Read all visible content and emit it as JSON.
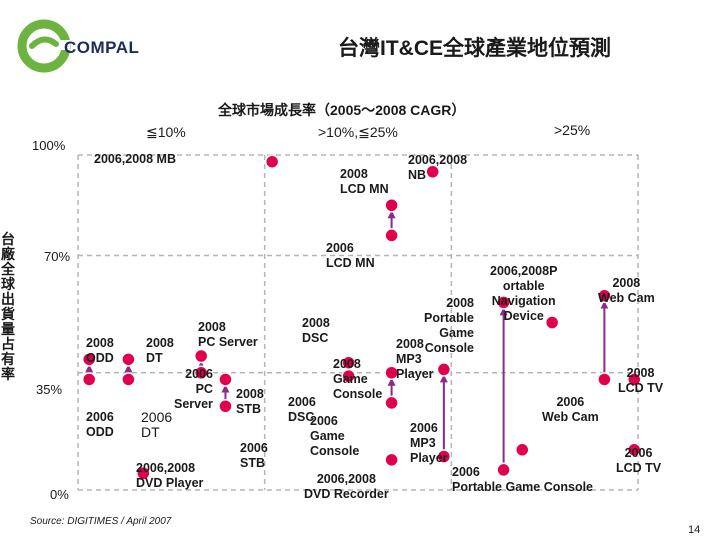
{
  "header": {
    "logo_text": "COMPAL",
    "title": "台灣IT&CE全球產業地位預測",
    "colors": {
      "logo_green": "#6cb33f",
      "logo_navy": "#1f2b5a",
      "marker": "#e0004d",
      "arrow": "#8a2a8a",
      "grid": "#b5b5b5"
    }
  },
  "chart_data": {
    "type": "scatter",
    "title": "全球市場成長率（2005～2008 CAGR）",
    "columns": [
      "≦10%",
      ">10%,≦25%",
      ">25%"
    ],
    "ylabel": "台廠全球出貨量占有率",
    "yticks": [
      "100%",
      "70%",
      "35%",
      "0%"
    ],
    "ylim": [
      0,
      100
    ],
    "xlim": [
      0,
      3
    ],
    "points": [
      {
        "id": "mb",
        "x": 1.04,
        "y": 98
      },
      {
        "id": "nb",
        "x": 1.9,
        "y": 95
      },
      {
        "id": "lcdmn2008",
        "x": 1.68,
        "y": 85
      },
      {
        "id": "lcdmn2006",
        "x": 1.68,
        "y": 76
      },
      {
        "id": "odd2008",
        "x": 0.06,
        "y": 39
      },
      {
        "id": "odd2006",
        "x": 0.06,
        "y": 33
      },
      {
        "id": "dt2008",
        "x": 0.27,
        "y": 39
      },
      {
        "id": "dt2006",
        "x": 0.27,
        "y": 33
      },
      {
        "id": "pcserver2008",
        "x": 0.66,
        "y": 40
      },
      {
        "id": "pcserver2006",
        "x": 0.66,
        "y": 35
      },
      {
        "id": "stb2008",
        "x": 0.79,
        "y": 33
      },
      {
        "id": "stb2006",
        "x": 0.79,
        "y": 25
      },
      {
        "id": "dvdplayer",
        "x": 0.35,
        "y": 5
      },
      {
        "id": "dsc2008",
        "x": 1.45,
        "y": 38
      },
      {
        "id": "dsc2006",
        "x": 1.45,
        "y": 34
      },
      {
        "id": "gc2008",
        "x": 1.68,
        "y": 35
      },
      {
        "id": "gc2006",
        "x": 1.68,
        "y": 26
      },
      {
        "id": "dvdrec",
        "x": 1.68,
        "y": 9
      },
      {
        "id": "mp32008",
        "x": 1.96,
        "y": 36
      },
      {
        "id": "mp32006",
        "x": 1.96,
        "y": 10
      },
      {
        "id": "pgc2008",
        "x": 2.28,
        "y": 56
      },
      {
        "id": "pgc2006",
        "x": 2.28,
        "y": 6
      },
      {
        "id": "navi2008",
        "x": 2.54,
        "y": 50
      },
      {
        "id": "navi2006",
        "x": 2.38,
        "y": 12
      },
      {
        "id": "webcam2008",
        "x": 2.82,
        "y": 58
      },
      {
        "id": "webcam2006",
        "x": 2.82,
        "y": 33
      },
      {
        "id": "lcdtv2008",
        "x": 2.98,
        "y": 33
      },
      {
        "id": "lcdtv2006",
        "x": 2.98,
        "y": 12
      }
    ],
    "arrows": [
      {
        "from": "lcdmn2006",
        "to": "lcdmn2008"
      },
      {
        "from": "odd2006",
        "to": "odd2008"
      },
      {
        "from": "dt2006",
        "to": "dt2008"
      },
      {
        "from": "pcserver2006",
        "to": "pcserver2008"
      },
      {
        "from": "stb2006",
        "to": "stb2008"
      },
      {
        "from": "dsc2006",
        "to": "dsc2008"
      },
      {
        "from": "gc2006",
        "to": "gc2008"
      },
      {
        "from": "mp32006",
        "to": "mp32008"
      },
      {
        "from": "pgc2006",
        "to": "pgc2008"
      },
      {
        "from": "webcam2006",
        "to": "webcam2008"
      }
    ],
    "labels": {
      "mb": "2006,2008 MB",
      "nb": "2006,2008\nNB",
      "lcdmn2008": "2008\nLCD MN",
      "lcdmn2006": "2006\nLCD MN",
      "odd2008": "2008\nODD",
      "odd2006": "2006\nODD",
      "dt2008": "2008\nDT",
      "dt2006": "2006\nDT",
      "pcserver2008": "2008\nPC Server",
      "pcserver2006": "2006\nPC\nServer",
      "stb2008": "2008\nSTB",
      "stb2006": "2006\nSTB",
      "dvdplayer": "2006,2008\nDVD Player",
      "dsc2008": "2008\nDSC",
      "dsc2006": "2006\nDSC",
      "gc2008": "2008\nGame\nConsole",
      "gc2006": "2006\nGame\nConsole",
      "mp32008": "2008\nMP3\nPlayer",
      "mp32006": "2006\nMP3\nPlayer",
      "pgc2008": "2008\nPortable\nGame\nConsole",
      "pgc2006": "2006\nPortable Game Console",
      "navi": "2006,2008P\nortable\nNavigation\nDevice",
      "webcam2008": "2008\nWeb Cam",
      "webcam2006": "2006\nWeb Cam",
      "lcdtv2008": "2008\nLCD TV",
      "lcdtv2006": "2006\nLCD TV",
      "dvdrec": "2006,2008\nDVD Recorder"
    }
  },
  "footer": {
    "source": "Source: DIGITIMES / April 2007",
    "page_number": "14"
  }
}
